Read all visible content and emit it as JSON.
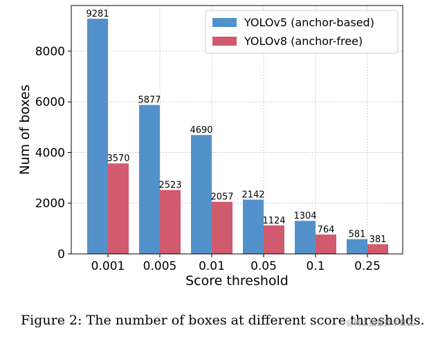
{
  "caption": "Figure 2: The number of boxes at different score thresholds.",
  "watermark": "@稀土掘金技术社区",
  "chart_data": {
    "type": "bar",
    "xlabel": "Score threshold",
    "ylabel": "Num of boxes",
    "categories": [
      "0.001",
      "0.005",
      "0.01",
      "0.05",
      "0.1",
      "0.25"
    ],
    "ylim": [
      0,
      9800
    ],
    "yticks": [
      0,
      2000,
      4000,
      6000,
      8000
    ],
    "grid": true,
    "legend_position": "top-right",
    "series": [
      {
        "name": "YOLOv5 (anchor-based)",
        "color": "#5391CB",
        "values": [
          9281,
          5877,
          4690,
          2142,
          1304,
          581
        ]
      },
      {
        "name": "YOLOv8 (anchor-free)",
        "color": "#D05A6E",
        "values": [
          3570,
          2523,
          2057,
          1124,
          764,
          381
        ]
      }
    ]
  }
}
